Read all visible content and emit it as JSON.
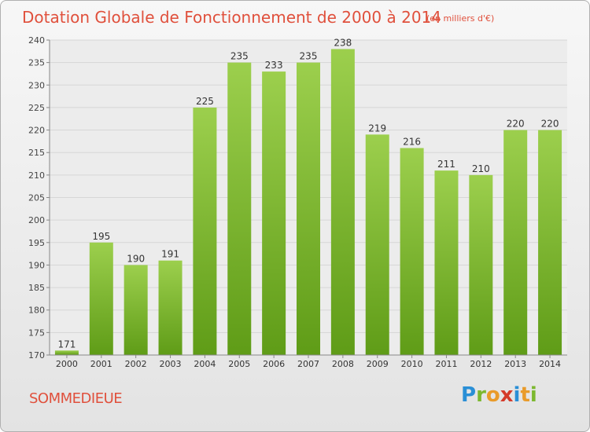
{
  "header": {
    "title": "Dotation Globale de Fonctionnement de 2000 à 2014",
    "unit": "(en milliers d'€)"
  },
  "footer": {
    "commune": "SOMMEDIEUE",
    "logo": [
      "P",
      "r",
      "o",
      "x",
      "i",
      "t",
      "i"
    ]
  },
  "colors": {
    "bar_top": "#9ccf4d",
    "bar_bottom": "#5f9c17",
    "title": "#e0503c",
    "grid": "#d6d6d6"
  },
  "chart_data": {
    "type": "bar",
    "title": "Dotation Globale de Fonctionnement de 2000 à 2014",
    "categories": [
      "2000",
      "2001",
      "2002",
      "2003",
      "2004",
      "2005",
      "2006",
      "2007",
      "2008",
      "2009",
      "2010",
      "2011",
      "2012",
      "2013",
      "2014"
    ],
    "values": [
      171,
      195,
      190,
      191,
      225,
      235,
      233,
      235,
      238,
      219,
      216,
      211,
      210,
      220,
      220
    ],
    "ylim": [
      170,
      240
    ],
    "yticks": [
      170,
      175,
      180,
      185,
      190,
      195,
      200,
      205,
      210,
      215,
      220,
      225,
      230,
      235,
      240
    ],
    "xlabel": "",
    "ylabel": "",
    "grid": true,
    "legend": "none"
  }
}
